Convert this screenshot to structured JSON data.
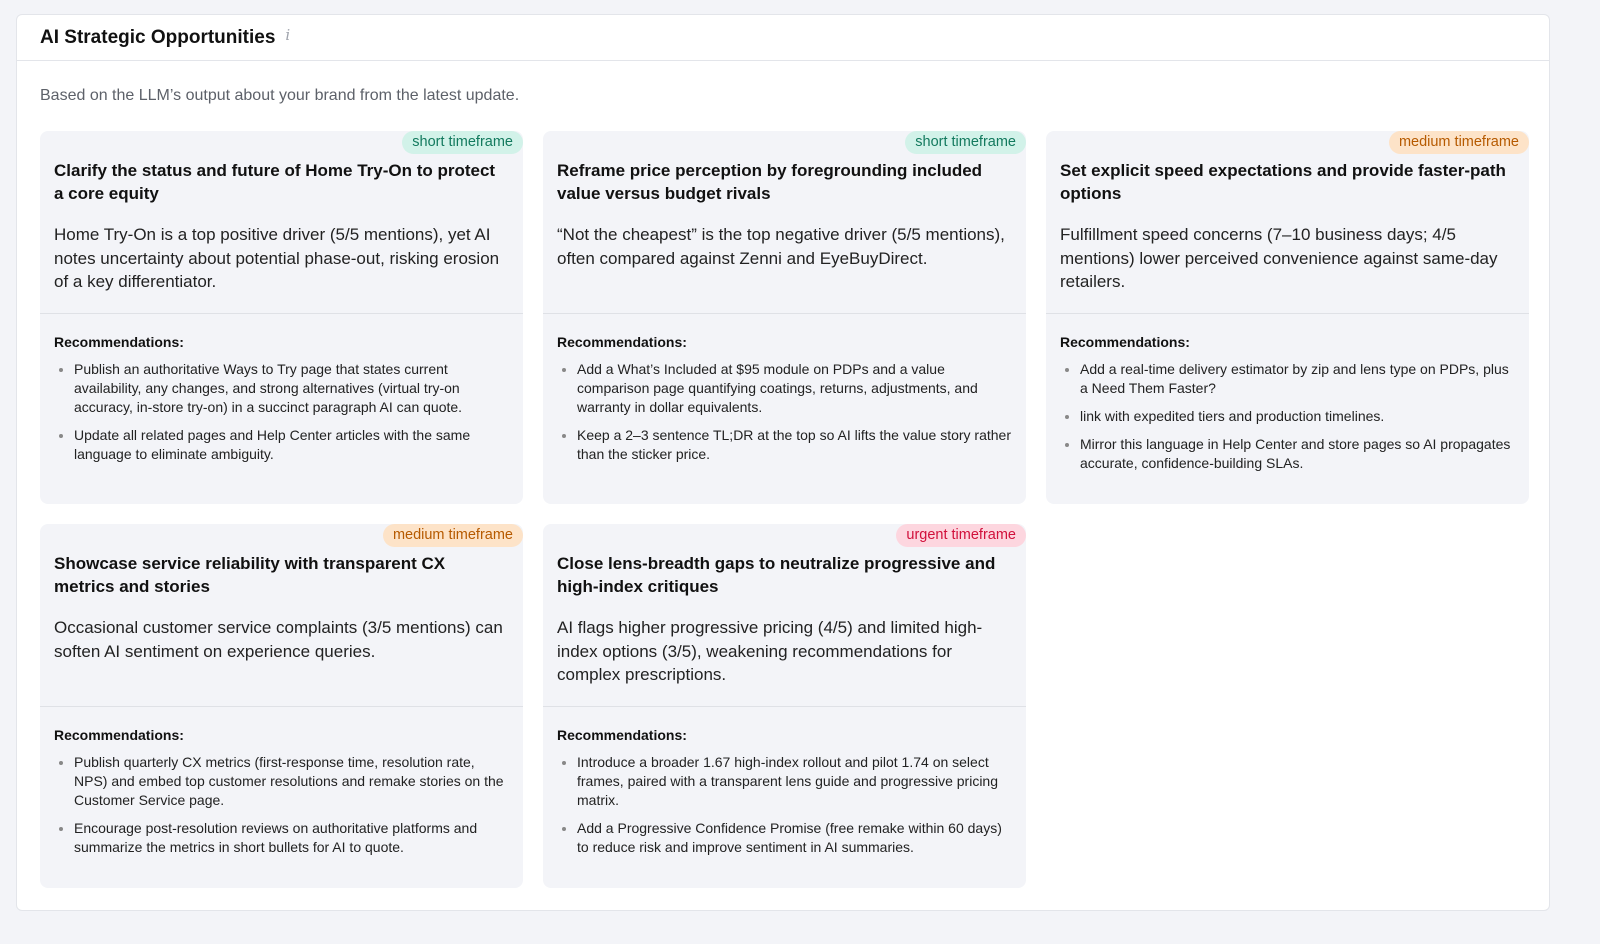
{
  "header": {
    "title": "AI Strategic Opportunities",
    "info_icon": "info-icon"
  },
  "subtitle": "Based on the LLM’s output about your brand from the latest update.",
  "recommendations_label": "Recommendations:",
  "badge_colors": {
    "short": "#137a5e",
    "medium": "#b65a00",
    "urgent": "#d1103b"
  },
  "cards": [
    {
      "badge": "short timeframe",
      "level": "short",
      "title": "Clarify the status and future of Home Try-On to protect a core equity",
      "description": "Home Try-On is a top positive driver (5/5 mentions), yet AI notes uncertainty about potential phase-out, risking erosion of a key differentiator.",
      "recommendations": [
        "Publish an authoritative Ways to Try page that states current availability, any changes, and strong alternatives (virtual try-on accuracy, in-store try-on) in a succinct paragraph AI can quote.",
        "Update all related pages and Help Center articles with the same language to eliminate ambiguity."
      ]
    },
    {
      "badge": "short timeframe",
      "level": "short",
      "title": "Reframe price perception by foregrounding included value versus budget rivals",
      "description": "“Not the cheapest” is the top negative driver (5/5 mentions), often compared against Zenni and EyeBuyDirect.",
      "recommendations": [
        "Add a What’s Included at $95 module on PDPs and a value comparison page quantifying coatings, returns, adjustments, and warranty in dollar equivalents.",
        "Keep a 2–3 sentence TL;DR at the top so AI lifts the value story rather than the sticker price."
      ]
    },
    {
      "badge": "medium timeframe",
      "level": "medium",
      "title": "Set explicit speed expectations and provide faster-path options",
      "description": "Fulfillment speed concerns (7–10 business days; 4/5 mentions) lower perceived convenience against same-day retailers.",
      "recommendations": [
        "Add a real-time delivery estimator by zip and lens type on PDPs, plus a Need Them Faster?",
        "link with expedited tiers and production timelines.",
        "Mirror this language in Help Center and store pages so AI propagates accurate, confidence-building SLAs."
      ]
    },
    {
      "badge": "medium timeframe",
      "level": "medium",
      "title": "Showcase service reliability with transparent CX metrics and stories",
      "description": "Occasional customer service complaints (3/5 mentions) can soften AI sentiment on experience queries.",
      "recommendations": [
        "Publish quarterly CX metrics (first-response time, resolution rate, NPS) and embed top customer resolutions and remake stories on the Customer Service page.",
        "Encourage post-resolution reviews on authoritative platforms and summarize the metrics in short bullets for AI to quote."
      ]
    },
    {
      "badge": "urgent timeframe",
      "level": "urgent",
      "title": "Close lens-breadth gaps to neutralize progressive and high-index critiques",
      "description": "AI flags higher progressive pricing (4/5) and limited high-index options (3/5), weakening recommendations for complex prescriptions.",
      "recommendations": [
        "Introduce a broader 1.67 high-index rollout and pilot 1.74 on select frames, paired with a transparent lens guide and progressive pricing matrix.",
        "Add a Progressive Confidence Promise (free remake within 60 days) to reduce risk and improve sentiment in AI summaries."
      ]
    }
  ]
}
